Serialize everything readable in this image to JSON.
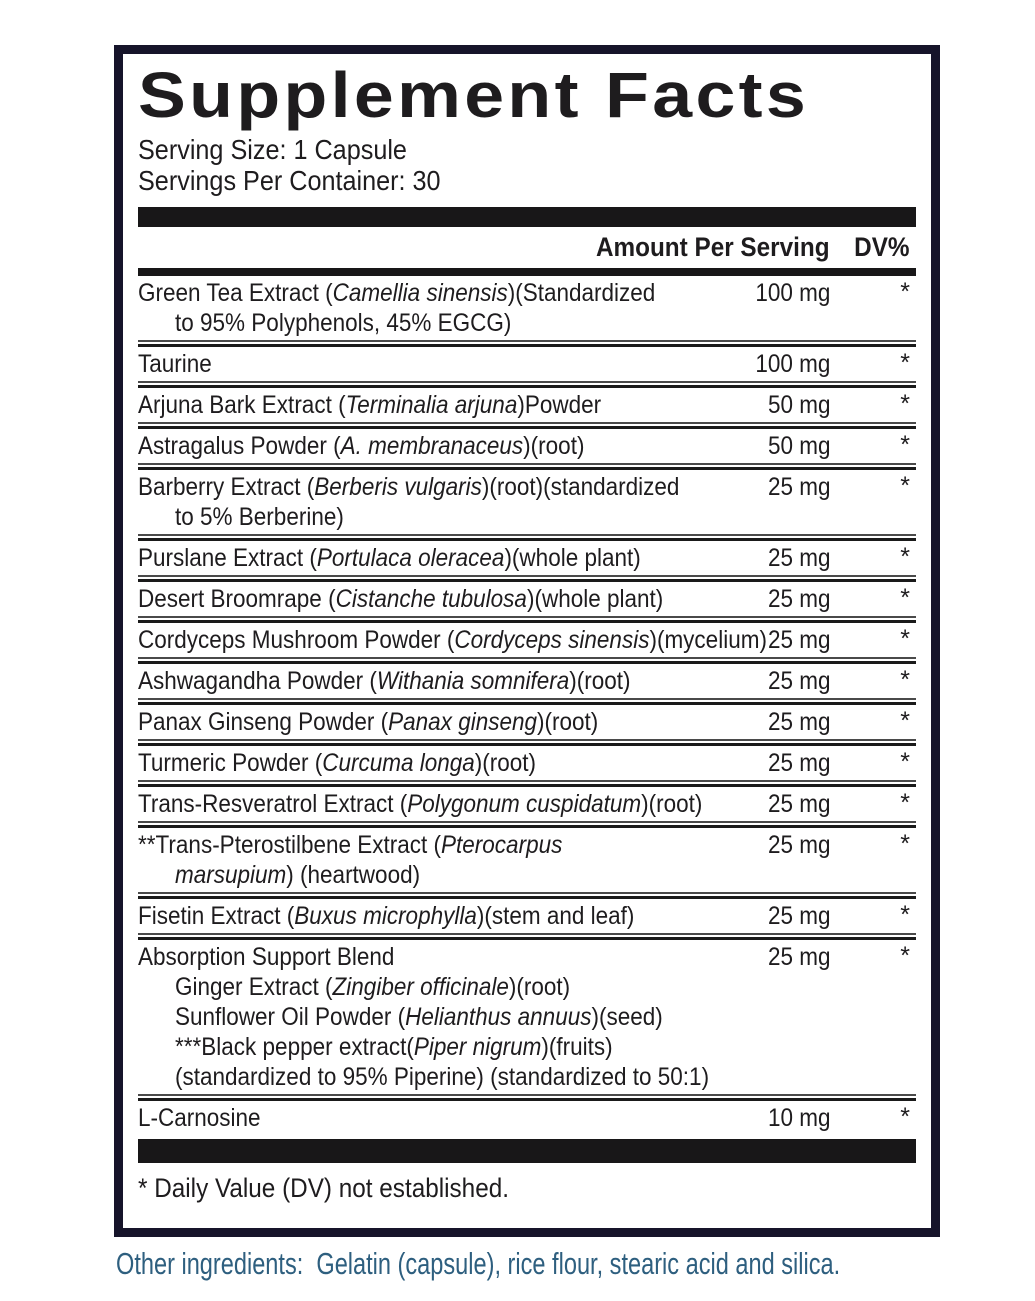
{
  "colors": {
    "accent": "#2e5f7f",
    "border": "#16142a",
    "bar": "#181718",
    "ink": "#1e1c1e"
  },
  "label": {
    "title": "Supplement Facts",
    "serving_size": "Serving Size: 1 Capsule",
    "servings_per_container": "Servings Per Container: 30",
    "footnote": "* Daily Value (DV) not established.",
    "other_ingredients": "Other ingredients:  Gelatin (capsule), rice flour, stearic acid and silica."
  },
  "table": {
    "columns": {
      "amount": "Amount Per Serving",
      "dv": "DV%"
    },
    "rows": [
      {
        "amount": "100 mg",
        "dv": "*",
        "lines": [
          {
            "indent": 0,
            "segments": [
              {
                "text": "Green Tea Extract (",
                "italic": false
              },
              {
                "text": "Camellia sinensis",
                "italic": true
              },
              {
                "text": ")(Standardized",
                "italic": false
              }
            ]
          },
          {
            "indent": 1,
            "segments": [
              {
                "text": "to 95% Polyphenols, 45% EGCG)",
                "italic": false
              }
            ]
          }
        ]
      },
      {
        "amount": "100 mg",
        "dv": "*",
        "lines": [
          {
            "indent": 0,
            "segments": [
              {
                "text": "Taurine",
                "italic": false
              }
            ]
          }
        ]
      },
      {
        "amount": "50 mg",
        "dv": "*",
        "lines": [
          {
            "indent": 0,
            "segments": [
              {
                "text": "Arjuna Bark Extract (",
                "italic": false
              },
              {
                "text": "Terminalia arjuna",
                "italic": true
              },
              {
                "text": ")Powder",
                "italic": false
              }
            ]
          }
        ]
      },
      {
        "amount": "50 mg",
        "dv": "*",
        "lines": [
          {
            "indent": 0,
            "segments": [
              {
                "text": "Astragalus Powder (",
                "italic": false
              },
              {
                "text": "A. membranaceus",
                "italic": true
              },
              {
                "text": ")(root)",
                "italic": false
              }
            ]
          }
        ]
      },
      {
        "amount": "25 mg",
        "dv": "*",
        "lines": [
          {
            "indent": 0,
            "segments": [
              {
                "text": "Barberry Extract (",
                "italic": false
              },
              {
                "text": "Berberis vulgaris",
                "italic": true
              },
              {
                "text": ")(root)(standardized",
                "italic": false
              }
            ]
          },
          {
            "indent": 1,
            "segments": [
              {
                "text": "to 5% Berberine)",
                "italic": false
              }
            ]
          }
        ]
      },
      {
        "amount": "25 mg",
        "dv": "*",
        "lines": [
          {
            "indent": 0,
            "segments": [
              {
                "text": "Purslane Extract (",
                "italic": false
              },
              {
                "text": "Portulaca oleracea",
                "italic": true
              },
              {
                "text": ")(whole plant)",
                "italic": false
              }
            ]
          }
        ]
      },
      {
        "amount": "25 mg",
        "dv": "*",
        "lines": [
          {
            "indent": 0,
            "segments": [
              {
                "text": "Desert Broomrape (",
                "italic": false
              },
              {
                "text": "Cistanche tubulosa",
                "italic": true
              },
              {
                "text": ")(whole plant)",
                "italic": false
              }
            ]
          }
        ]
      },
      {
        "amount": "25 mg",
        "dv": "*",
        "lines": [
          {
            "indent": 0,
            "segments": [
              {
                "text": "Cordyceps Mushroom Powder (",
                "italic": false
              },
              {
                "text": "Cordyceps sinensis",
                "italic": true
              },
              {
                "text": ")(mycelium)",
                "italic": false
              }
            ]
          }
        ]
      },
      {
        "amount": "25 mg",
        "dv": "*",
        "lines": [
          {
            "indent": 0,
            "segments": [
              {
                "text": "Ashwagandha Powder (",
                "italic": false
              },
              {
                "text": "Withania somnifera",
                "italic": true
              },
              {
                "text": ")(root)",
                "italic": false
              }
            ]
          }
        ]
      },
      {
        "amount": "25 mg",
        "dv": "*",
        "lines": [
          {
            "indent": 0,
            "segments": [
              {
                "text": "Panax Ginseng Powder (",
                "italic": false
              },
              {
                "text": "Panax ginseng",
                "italic": true
              },
              {
                "text": ")(root)",
                "italic": false
              }
            ]
          }
        ]
      },
      {
        "amount": "25 mg",
        "dv": "*",
        "lines": [
          {
            "indent": 0,
            "segments": [
              {
                "text": "Turmeric Powder (",
                "italic": false
              },
              {
                "text": "Curcuma longa",
                "italic": true
              },
              {
                "text": ")(root)",
                "italic": false
              }
            ]
          }
        ]
      },
      {
        "amount": "25 mg",
        "dv": "*",
        "lines": [
          {
            "indent": 0,
            "segments": [
              {
                "text": "Trans-Resveratrol Extract (",
                "italic": false
              },
              {
                "text": "Polygonum cuspidatum",
                "italic": true
              },
              {
                "text": ")(root)",
                "italic": false
              }
            ]
          }
        ]
      },
      {
        "amount": "25 mg",
        "dv": "*",
        "lines": [
          {
            "indent": 0,
            "segments": [
              {
                "text": "**Trans-Pterostilbene Extract (",
                "italic": false
              },
              {
                "text": "Pterocarpus",
                "italic": true
              }
            ]
          },
          {
            "indent": 1,
            "segments": [
              {
                "text": "marsupium",
                "italic": true
              },
              {
                "text": ") (heartwood)",
                "italic": false
              }
            ]
          }
        ]
      },
      {
        "amount": "25 mg",
        "dv": "*",
        "lines": [
          {
            "indent": 0,
            "segments": [
              {
                "text": "Fisetin Extract (",
                "italic": false
              },
              {
                "text": "Buxus microphylla",
                "italic": true
              },
              {
                "text": ")(stem and leaf)",
                "italic": false
              }
            ]
          }
        ]
      },
      {
        "amount": "25 mg",
        "dv": "*",
        "lines": [
          {
            "indent": 0,
            "segments": [
              {
                "text": "Absorption Support Blend",
                "italic": false
              }
            ]
          },
          {
            "indent": 1,
            "segments": [
              {
                "text": "Ginger Extract (",
                "italic": false
              },
              {
                "text": "Zingiber officinale",
                "italic": true
              },
              {
                "text": ")(root)",
                "italic": false
              }
            ]
          },
          {
            "indent": 1,
            "segments": [
              {
                "text": "Sunflower Oil Powder (",
                "italic": false
              },
              {
                "text": "Helianthus annuus",
                "italic": true
              },
              {
                "text": ")(seed)",
                "italic": false
              }
            ]
          },
          {
            "indent": 1,
            "segments": [
              {
                "text": "***Black pepper extract(",
                "italic": false
              },
              {
                "text": "Piper nigrum",
                "italic": true
              },
              {
                "text": ")(fruits)",
                "italic": false
              }
            ]
          },
          {
            "indent": 1,
            "segments": [
              {
                "text": "(standardized to 95% Piperine) (standardized to 50:1)",
                "italic": false
              }
            ]
          }
        ]
      },
      {
        "amount": "10 mg",
        "dv": "*",
        "lines": [
          {
            "indent": 0,
            "segments": [
              {
                "text": "L-Carnosine",
                "italic": false
              }
            ]
          }
        ]
      }
    ]
  }
}
